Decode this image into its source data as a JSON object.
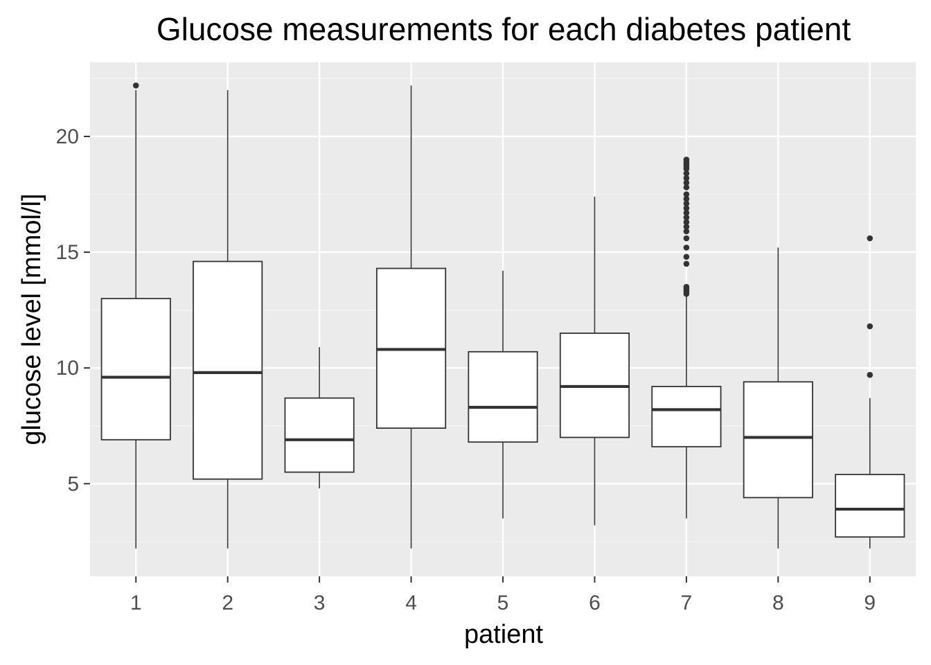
{
  "chart_data": {
    "type": "boxplot",
    "title": "Glucose measurements for each diabetes patient",
    "xlabel": "patient",
    "ylabel": "glucose level [mmol/l]",
    "categories": [
      "1",
      "2",
      "3",
      "4",
      "5",
      "6",
      "7",
      "8",
      "9"
    ],
    "ylim": [
      1.0,
      23.2
    ],
    "yticks": [
      5,
      10,
      15,
      20
    ],
    "ytick_labels": [
      "5",
      "10",
      "15",
      "20"
    ],
    "grid": true,
    "legend": "none",
    "boxes": [
      {
        "category": "1",
        "whisker_low": 2.2,
        "q1": 6.9,
        "median": 9.6,
        "q3": 13.0,
        "whisker_high": 22.0,
        "outliers": [
          22.2
        ]
      },
      {
        "category": "2",
        "whisker_low": 2.2,
        "q1": 5.2,
        "median": 9.8,
        "q3": 14.6,
        "whisker_high": 22.0,
        "outliers": []
      },
      {
        "category": "3",
        "whisker_low": 4.8,
        "q1": 5.5,
        "median": 6.9,
        "q3": 8.7,
        "whisker_high": 10.9,
        "outliers": []
      },
      {
        "category": "4",
        "whisker_low": 2.2,
        "q1": 7.4,
        "median": 10.8,
        "q3": 14.3,
        "whisker_high": 22.2,
        "outliers": []
      },
      {
        "category": "5",
        "whisker_low": 3.5,
        "q1": 6.8,
        "median": 8.3,
        "q3": 10.7,
        "whisker_high": 14.2,
        "outliers": []
      },
      {
        "category": "6",
        "whisker_low": 3.2,
        "q1": 7.0,
        "median": 9.2,
        "q3": 11.5,
        "whisker_high": 17.4,
        "outliers": []
      },
      {
        "category": "7",
        "whisker_low": 3.5,
        "q1": 6.6,
        "median": 8.2,
        "q3": 9.2,
        "whisker_high": 13.1,
        "outliers": [
          13.2,
          13.3,
          13.4,
          13.5,
          14.5,
          14.8,
          15.2,
          15.6,
          15.9,
          16.1,
          16.3,
          16.5,
          16.7,
          16.9,
          17.1,
          17.3,
          17.5,
          17.8,
          18.0,
          18.2,
          18.4,
          18.6,
          18.7,
          18.8,
          18.9,
          19.0
        ]
      },
      {
        "category": "8",
        "whisker_low": 2.2,
        "q1": 4.4,
        "median": 7.0,
        "q3": 9.4,
        "whisker_high": 15.2,
        "outliers": []
      },
      {
        "category": "9",
        "whisker_low": 2.2,
        "q1": 2.7,
        "median": 3.9,
        "q3": 5.4,
        "whisker_high": 8.7,
        "outliers": [
          9.7,
          11.8,
          15.6
        ]
      }
    ]
  },
  "colors": {
    "panel_background": "#ebebeb",
    "grid_major": "#ffffff",
    "grid_minor": "#f5f5f5",
    "box_fill": "#ffffff",
    "box_line": "#333333",
    "tick_label": "#4d4d4d",
    "text": "#000000"
  }
}
